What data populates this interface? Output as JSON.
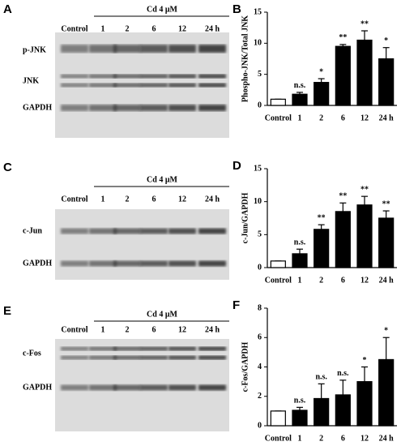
{
  "blots": [
    {
      "panel": "A",
      "treatment": "Cd  4 μM",
      "lanes": [
        "Control",
        "1",
        "2",
        "6",
        "12",
        "24 h"
      ],
      "rows": [
        "p-JNK",
        "JNK",
        "GAPDH"
      ]
    },
    {
      "panel": "C",
      "treatment": "Cd  4 μM",
      "lanes": [
        "Control",
        "1",
        "2",
        "6",
        "12",
        "24 h"
      ],
      "rows": [
        "c-Jun",
        "GAPDH"
      ]
    },
    {
      "panel": "E",
      "treatment": "Cd  4 μM",
      "lanes": [
        "Control",
        "1",
        "2",
        "6",
        "12",
        "24 h"
      ],
      "rows": [
        "c-Fos",
        "GAPDH"
      ]
    }
  ],
  "chart_data": [
    {
      "type": "bar",
      "panel": "B",
      "ylabel": "Phospho-JNK/Total JNK",
      "categories": [
        "Control",
        "1",
        "2",
        "6",
        "12",
        "24 h"
      ],
      "values": [
        1,
        1.8,
        3.7,
        9.5,
        10.5,
        7.5
      ],
      "errors": [
        0,
        0.3,
        0.6,
        0.3,
        1.5,
        1.8
      ],
      "annotations": [
        null,
        "n.s.",
        "*",
        "**",
        "**",
        "*"
      ],
      "colors": [
        "#ffffff",
        "#000000",
        "#000000",
        "#000000",
        "#000000",
        "#000000"
      ],
      "ylim": [
        0,
        15
      ],
      "yticks": [
        0,
        5,
        10,
        15
      ]
    },
    {
      "type": "bar",
      "panel": "D",
      "ylabel": "c-Jun/GAPDH",
      "categories": [
        "Control",
        "1",
        "2",
        "6",
        "12",
        "24 h"
      ],
      "values": [
        1,
        2.1,
        5.8,
        8.5,
        9.5,
        7.5
      ],
      "errors": [
        0,
        0.7,
        0.7,
        1.3,
        1.3,
        1.1
      ],
      "annotations": [
        null,
        "n.s.",
        "**",
        "**",
        "**",
        "**"
      ],
      "colors": [
        "#ffffff",
        "#000000",
        "#000000",
        "#000000",
        "#000000",
        "#000000"
      ],
      "ylim": [
        0,
        15
      ],
      "yticks": [
        0,
        5,
        10,
        15
      ]
    },
    {
      "type": "bar",
      "panel": "F",
      "ylabel": "c-Fos/GAPDH",
      "categories": [
        "Control",
        "1",
        "2",
        "6",
        "12",
        "24 h"
      ],
      "values": [
        1,
        1.05,
        1.85,
        2.1,
        3.0,
        4.5
      ],
      "errors": [
        0,
        0.2,
        1.0,
        1.0,
        1.0,
        1.5
      ],
      "annotations": [
        null,
        "n.s.",
        "n.s.",
        "n.s.",
        "*",
        "*"
      ],
      "colors": [
        "#ffffff",
        "#000000",
        "#000000",
        "#000000",
        "#000000",
        "#000000"
      ],
      "ylim": [
        0,
        8
      ],
      "yticks": [
        0,
        2,
        4,
        6,
        8
      ]
    }
  ]
}
